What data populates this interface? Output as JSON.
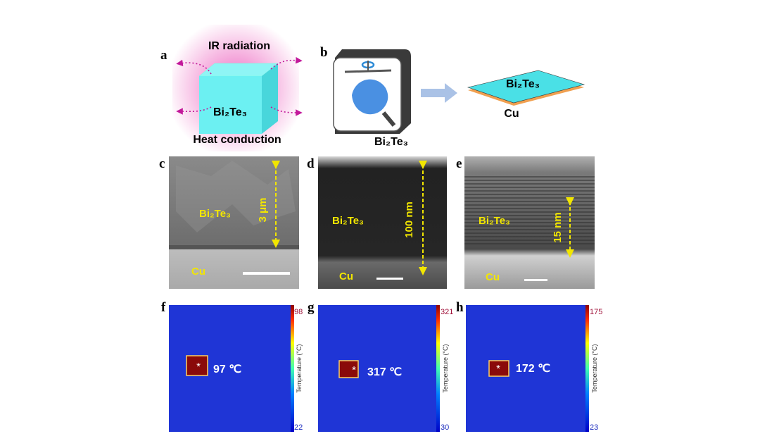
{
  "panels": {
    "a": {
      "label": "a",
      "top": "IR radiation",
      "material": "Bi₂Te₃",
      "bottom": "Heat conduction"
    },
    "b": {
      "label": "b",
      "source": "Bi₂Te₃",
      "film": "Bi₂Te₃",
      "substrate": "Cu"
    },
    "c": {
      "label": "c",
      "film": "Bi₂Te₃",
      "substrate": "Cu",
      "thickness": "3 μm"
    },
    "d": {
      "label": "d",
      "film": "Bi₂Te₃",
      "substrate": "Cu",
      "thickness": "100 nm"
    },
    "e": {
      "label": "e",
      "film": "Bi₂Te₃",
      "substrate": "Cu",
      "thickness": "15 nm"
    },
    "f": {
      "label": "f",
      "spot": "97 ℃",
      "cbar_label": "Temperature (°C)",
      "cbar_max": 98,
      "cbar_min": 22
    },
    "g": {
      "label": "g",
      "spot": "317 ℃",
      "cbar_label": "Temperature (°C)",
      "cbar_max": 321,
      "cbar_min": 30
    },
    "h": {
      "label": "h",
      "spot": "172 ℃",
      "cbar_label": "Temperature (°C)",
      "cbar_max": 175,
      "cbar_min": 23
    }
  }
}
